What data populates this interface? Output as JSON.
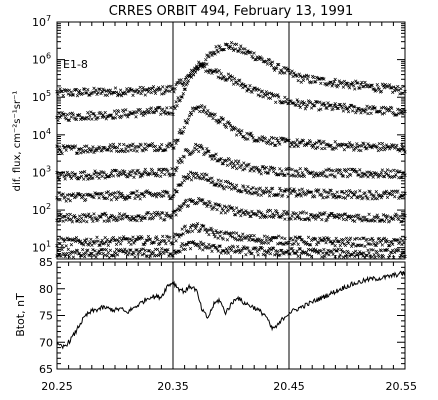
{
  "chart_data": [
    {
      "type": "scatter",
      "title": "CRRES ORBIT 494, February 13, 1991",
      "panel_label": "E1-8",
      "ylabel": "dif. flux, cm⁻²s⁻¹sr⁻¹",
      "yscale": "log",
      "ylim": [
        5,
        10000000
      ],
      "xlim": [
        20.25,
        20.55
      ],
      "ytick_exponents": [
        "1",
        "2",
        "3",
        "4",
        "5",
        "6",
        "7"
      ],
      "ytick_base": "10",
      "vertical_lines": [
        20.35,
        20.45
      ],
      "grid": false,
      "series": [
        {
          "x": [
            20.25,
            20.3,
            20.34,
            20.35,
            20.36,
            20.38,
            20.39,
            20.4,
            20.42,
            20.44,
            20.46,
            20.5,
            20.55
          ],
          "values": [
            130000,
            140000,
            150000,
            170000,
            280000,
            1100000,
            2200000,
            2300000,
            1300000,
            600000,
            320000,
            220000,
            150000
          ]
        },
        {
          "x": [
            20.25,
            20.3,
            20.35,
            20.36,
            20.37,
            20.38,
            20.4,
            20.42,
            20.44,
            20.46,
            20.5,
            20.55
          ],
          "values": [
            30000,
            35000,
            45000,
            150000,
            700000,
            600000,
            300000,
            150000,
            90000,
            65000,
            50000,
            40000
          ]
        },
        {
          "x": [
            20.25,
            20.3,
            20.35,
            20.36,
            20.37,
            20.39,
            20.41,
            20.44,
            20.47,
            20.5,
            20.55
          ],
          "values": [
            4000,
            4500,
            5000,
            18000,
            60000,
            25000,
            10000,
            6500,
            5500,
            5000,
            4500
          ]
        },
        {
          "x": [
            20.25,
            20.3,
            20.35,
            20.36,
            20.37,
            20.39,
            20.42,
            20.46,
            20.5,
            20.55
          ],
          "values": [
            800,
            900,
            1000,
            3000,
            5000,
            2200,
            1200,
            1000,
            950,
            900
          ]
        },
        {
          "x": [
            20.25,
            20.3,
            20.35,
            20.36,
            20.37,
            20.39,
            20.42,
            20.46,
            20.5,
            20.55
          ],
          "values": [
            220,
            240,
            260,
            700,
            900,
            500,
            320,
            280,
            260,
            250
          ]
        },
        {
          "x": [
            20.25,
            20.3,
            20.35,
            20.36,
            20.37,
            20.39,
            20.42,
            20.46,
            20.5,
            20.55
          ],
          "values": [
            60,
            65,
            70,
            150,
            180,
            110,
            80,
            70,
            65,
            60
          ]
        },
        {
          "x": [
            20.25,
            20.3,
            20.35,
            20.36,
            20.37,
            20.39,
            20.42,
            20.46,
            20.5,
            20.55
          ],
          "values": [
            14,
            15,
            16,
            30,
            35,
            22,
            17,
            15,
            14,
            14
          ]
        },
        {
          "x": [
            20.25,
            20.3,
            20.35,
            20.36,
            20.37,
            20.39,
            20.42,
            20.46,
            20.5,
            20.55
          ],
          "values": [
            7,
            7,
            7.5,
            11,
            12,
            9,
            8,
            7.5,
            7,
            7
          ]
        }
      ]
    },
    {
      "type": "line",
      "ylabel": "Btot, nT",
      "xlim": [
        20.25,
        20.55
      ],
      "ylim": [
        65,
        85
      ],
      "yticks": [
        "65",
        "70",
        "75",
        "80",
        "85"
      ],
      "xticks": [
        "20.25",
        "20.35",
        "20.45",
        "20.55"
      ],
      "vertical_lines": [
        20.35,
        20.45
      ],
      "grid": false,
      "series": [
        {
          "x": [
            20.25,
            20.255,
            20.26,
            20.265,
            20.27,
            20.275,
            20.28,
            20.29,
            20.3,
            20.305,
            20.31,
            20.32,
            20.33,
            20.34,
            20.345,
            20.35,
            20.355,
            20.36,
            20.365,
            20.37,
            20.375,
            20.38,
            20.385,
            20.39,
            20.395,
            20.4,
            20.405,
            20.41,
            20.42,
            20.43,
            20.435,
            20.44,
            20.445,
            20.45,
            20.46,
            20.47,
            20.48,
            20.49,
            20.5,
            20.51,
            20.52,
            20.53,
            20.54,
            20.55
          ],
          "values": [
            69.5,
            69.0,
            70.0,
            71.5,
            73.5,
            75.0,
            75.8,
            76.5,
            76.0,
            76.3,
            75.5,
            77.0,
            78.5,
            78.5,
            80.5,
            81.2,
            80.0,
            79.5,
            80.5,
            79.8,
            76.0,
            74.5,
            77.0,
            78.0,
            75.5,
            77.0,
            78.5,
            77.5,
            76.5,
            75.0,
            72.5,
            73.0,
            74.5,
            75.5,
            76.5,
            77.5,
            78.5,
            79.5,
            80.5,
            81.2,
            81.8,
            82.0,
            82.5,
            83.0
          ]
        }
      ]
    }
  ]
}
